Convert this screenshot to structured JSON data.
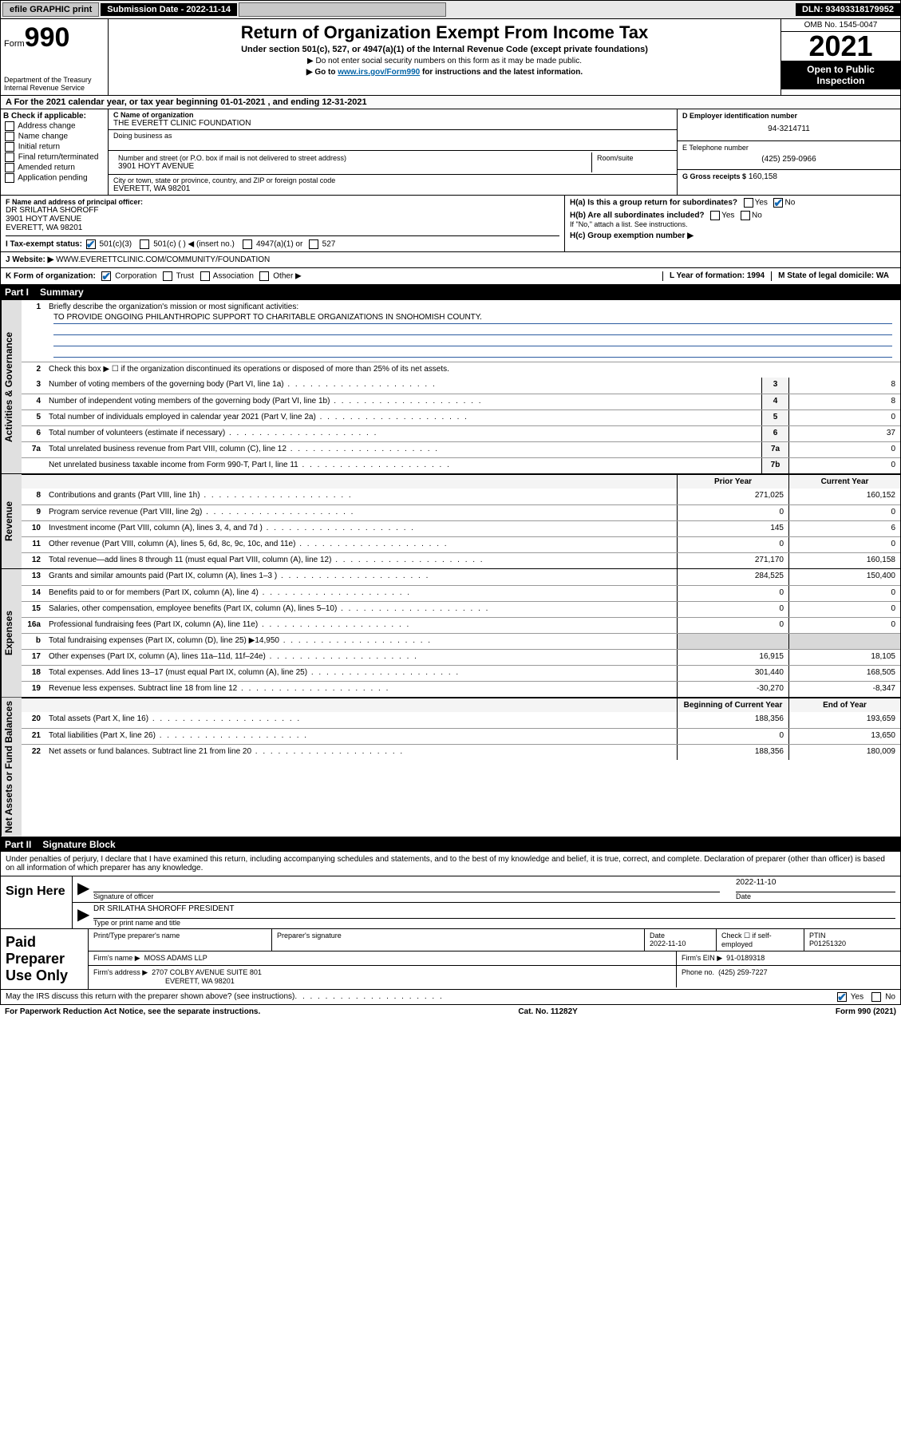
{
  "topbar": {
    "efile": "efile GRAPHIC print",
    "sub_label": "Submission Date - 2022-11-14",
    "dln": "DLN: 93493318179952"
  },
  "header": {
    "form_word": "Form",
    "form_num": "990",
    "title": "Return of Organization Exempt From Income Tax",
    "subtitle": "Under section 501(c), 527, or 4947(a)(1) of the Internal Revenue Code (except private foundations)",
    "line1": "▶ Do not enter social security numbers on this form as it may be made public.",
    "line2a": "▶ Go to ",
    "line2_link": "www.irs.gov/Form990",
    "line2b": " for instructions and the latest information.",
    "dept": "Department of the Treasury\nInternal Revenue Service",
    "omb": "OMB No. 1545-0047",
    "year": "2021",
    "open": "Open to Public Inspection"
  },
  "row_a": "A For the 2021 calendar year, or tax year beginning 01-01-2021   , and ending 12-31-2021",
  "col_b": {
    "hdr": "B Check if applicable:",
    "opts": [
      "Address change",
      "Name change",
      "Initial return",
      "Final return/terminated",
      "Amended return",
      "Application pending"
    ]
  },
  "col_c": {
    "name_lbl": "C Name of organization",
    "name": "THE EVERETT CLINIC FOUNDATION",
    "dba_lbl": "Doing business as",
    "addr_lbl": "Number and street (or P.O. box if mail is not delivered to street address)",
    "room_lbl": "Room/suite",
    "addr": "3901 HOYT AVENUE",
    "city_lbl": "City or town, state or province, country, and ZIP or foreign postal code",
    "city": "EVERETT, WA  98201"
  },
  "col_d": {
    "ein_lbl": "D Employer identification number",
    "ein": "94-3214711",
    "tel_lbl": "E Telephone number",
    "tel": "(425) 259-0966",
    "gross_lbl": "G Gross receipts $",
    "gross": "160,158"
  },
  "row_f": {
    "f_lbl": "F Name and address of principal officer:",
    "f_name": "DR SRILATHA SHOROFF",
    "f_addr1": "3901 HOYT AVENUE",
    "f_addr2": "EVERETT, WA  98201",
    "h_a": "H(a)  Is this a group return for subordinates?",
    "h_b": "H(b)  Are all subordinates included?",
    "h_note": "If \"No,\" attach a list. See instructions.",
    "h_c": "H(c)  Group exemption number ▶",
    "yes": "Yes",
    "no": "No"
  },
  "row_i": {
    "lbl": "I   Tax-exempt status:",
    "o1": "501(c)(3)",
    "o2": "501(c) (   ) ◀ (insert no.)",
    "o3": "4947(a)(1) or",
    "o4": "527"
  },
  "row_j": {
    "lbl": "J   Website: ▶",
    "val": "WWW.EVERETTCLINIC.COM/COMMUNITY/FOUNDATION"
  },
  "row_k": {
    "lbl": "K Form of organization:",
    "corp": "Corporation",
    "trust": "Trust",
    "assoc": "Association",
    "other": "Other ▶",
    "l": "L Year of formation: 1994",
    "m": "M State of legal domicile: WA"
  },
  "part1": {
    "hdr_part": "Part I",
    "hdr_title": "Summary",
    "q1": "Briefly describe the organization's mission or most significant activities:",
    "mission": "TO PROVIDE ONGOING PHILANTHROPIC SUPPORT TO CHARITABLE ORGANIZATIONS IN SNOHOMISH COUNTY.",
    "q2": "Check this box ▶ ☐  if the organization discontinued its operations or disposed of more than 25% of its net assets.",
    "tabs": {
      "gov": "Activities & Governance",
      "rev": "Revenue",
      "exp": "Expenses",
      "net": "Net Assets or Fund Balances"
    },
    "col_prior": "Prior Year",
    "col_curr": "Current Year",
    "col_beg": "Beginning of Current Year",
    "col_end": "End of Year",
    "lines_gov": [
      {
        "n": "3",
        "t": "Number of voting members of the governing body (Part VI, line 1a)",
        "box": "3",
        "v": "8"
      },
      {
        "n": "4",
        "t": "Number of independent voting members of the governing body (Part VI, line 1b)",
        "box": "4",
        "v": "8"
      },
      {
        "n": "5",
        "t": "Total number of individuals employed in calendar year 2021 (Part V, line 2a)",
        "box": "5",
        "v": "0"
      },
      {
        "n": "6",
        "t": "Total number of volunteers (estimate if necessary)",
        "box": "6",
        "v": "37"
      },
      {
        "n": "7a",
        "t": "Total unrelated business revenue from Part VIII, column (C), line 12",
        "box": "7a",
        "v": "0"
      },
      {
        "n": "",
        "t": "Net unrelated business taxable income from Form 990-T, Part I, line 11",
        "box": "7b",
        "v": "0"
      }
    ],
    "lines_rev": [
      {
        "n": "8",
        "t": "Contributions and grants (Part VIII, line 1h)",
        "p": "271,025",
        "c": "160,152"
      },
      {
        "n": "9",
        "t": "Program service revenue (Part VIII, line 2g)",
        "p": "0",
        "c": "0"
      },
      {
        "n": "10",
        "t": "Investment income (Part VIII, column (A), lines 3, 4, and 7d )",
        "p": "145",
        "c": "6"
      },
      {
        "n": "11",
        "t": "Other revenue (Part VIII, column (A), lines 5, 6d, 8c, 9c, 10c, and 11e)",
        "p": "0",
        "c": "0"
      },
      {
        "n": "12",
        "t": "Total revenue—add lines 8 through 11 (must equal Part VIII, column (A), line 12)",
        "p": "271,170",
        "c": "160,158"
      }
    ],
    "lines_exp": [
      {
        "n": "13",
        "t": "Grants and similar amounts paid (Part IX, column (A), lines 1–3 )",
        "p": "284,525",
        "c": "150,400"
      },
      {
        "n": "14",
        "t": "Benefits paid to or for members (Part IX, column (A), line 4)",
        "p": "0",
        "c": "0"
      },
      {
        "n": "15",
        "t": "Salaries, other compensation, employee benefits (Part IX, column (A), lines 5–10)",
        "p": "0",
        "c": "0"
      },
      {
        "n": "16a",
        "t": "Professional fundraising fees (Part IX, column (A), line 11e)",
        "p": "0",
        "c": "0"
      },
      {
        "n": "b",
        "t": "Total fundraising expenses (Part IX, column (D), line 25) ▶14,950",
        "p": "",
        "c": "",
        "shade": true
      },
      {
        "n": "17",
        "t": "Other expenses (Part IX, column (A), lines 11a–11d, 11f–24e)",
        "p": "16,915",
        "c": "18,105"
      },
      {
        "n": "18",
        "t": "Total expenses. Add lines 13–17 (must equal Part IX, column (A), line 25)",
        "p": "301,440",
        "c": "168,505"
      },
      {
        "n": "19",
        "t": "Revenue less expenses. Subtract line 18 from line 12",
        "p": "-30,270",
        "c": "-8,347"
      }
    ],
    "lines_net": [
      {
        "n": "20",
        "t": "Total assets (Part X, line 16)",
        "p": "188,356",
        "c": "193,659"
      },
      {
        "n": "21",
        "t": "Total liabilities (Part X, line 26)",
        "p": "0",
        "c": "13,650"
      },
      {
        "n": "22",
        "t": "Net assets or fund balances. Subtract line 21 from line 20",
        "p": "188,356",
        "c": "180,009"
      }
    ]
  },
  "part2": {
    "hdr_part": "Part II",
    "hdr_title": "Signature Block",
    "decl": "Under penalties of perjury, I declare that I have examined this return, including accompanying schedules and statements, and to the best of my knowledge and belief, it is true, correct, and complete. Declaration of preparer (other than officer) is based on all information of which preparer has any knowledge.",
    "sign_here": "Sign Here",
    "sig_officer": "Signature of officer",
    "sig_date_lbl": "Date",
    "sig_date": "2022-11-10",
    "officer": "DR SRILATHA SHOROFF  PRESIDENT",
    "type_name": "Type or print name and title",
    "paid": "Paid Preparer Use Only",
    "prep_name_lbl": "Print/Type preparer's name",
    "prep_sig_lbl": "Preparer's signature",
    "date_lbl": "Date",
    "date": "2022-11-10",
    "check_lbl": "Check ☐ if self-employed",
    "ptin_lbl": "PTIN",
    "ptin": "P01251320",
    "firm_name_lbl": "Firm's name    ▶",
    "firm_name": "MOSS ADAMS LLP",
    "firm_ein_lbl": "Firm's EIN ▶",
    "firm_ein": "91-0189318",
    "firm_addr_lbl": "Firm's address ▶",
    "firm_addr1": "2707 COLBY AVENUE SUITE 801",
    "firm_addr2": "EVERETT, WA  98201",
    "phone_lbl": "Phone no.",
    "phone": "(425) 259-7227",
    "discuss": "May the IRS discuss this return with the preparer shown above? (see instructions)",
    "yes": "Yes",
    "no": "No"
  },
  "footer": {
    "left": "For Paperwork Reduction Act Notice, see the separate instructions.",
    "mid": "Cat. No. 11282Y",
    "right": "Form 990 (2021)"
  }
}
